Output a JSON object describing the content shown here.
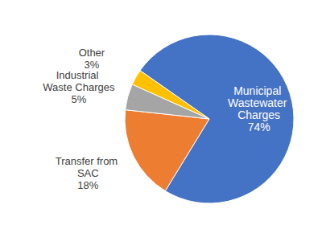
{
  "chart_data": {
    "type": "pie",
    "categories": [
      "Municipal Wastewater Charges",
      "Transfer from SAC",
      "Industrial Waste Charges",
      "Other"
    ],
    "values": [
      74,
      18,
      5,
      3
    ],
    "value_labels": [
      "74%",
      "18%",
      "5%",
      "3%"
    ],
    "colors": [
      "#4472c4",
      "#ed7d31",
      "#a5a5a5",
      "#ffc000"
    ],
    "data_labels": true
  }
}
